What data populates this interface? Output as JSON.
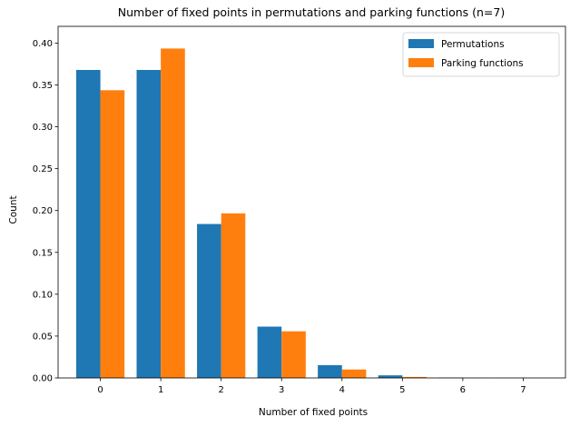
{
  "chart_data": {
    "type": "bar",
    "title": "Number of fixed points in permutations and parking functions (n=7)",
    "xlabel": "Number of fixed points",
    "ylabel": "Count",
    "categories": [
      "0",
      "1",
      "2",
      "3",
      "4",
      "5",
      "6",
      "7"
    ],
    "series": [
      {
        "name": "Permutations",
        "color": "#1f77b4",
        "values": [
          0.3679,
          0.3679,
          0.1839,
          0.0613,
          0.0153,
          0.0031,
          0.0005,
          0.0001
        ]
      },
      {
        "name": "Parking functions",
        "color": "#ff7f0e",
        "values": [
          0.3437,
          0.3935,
          0.1966,
          0.0557,
          0.0101,
          0.0012,
          0.0001,
          0.0
        ]
      }
    ],
    "ylim": [
      0,
      0.42
    ],
    "yticks": [
      "0.00",
      "0.05",
      "0.10",
      "0.15",
      "0.20",
      "0.25",
      "0.30",
      "0.35",
      "0.40"
    ],
    "grid": false,
    "legend": "top-right"
  }
}
